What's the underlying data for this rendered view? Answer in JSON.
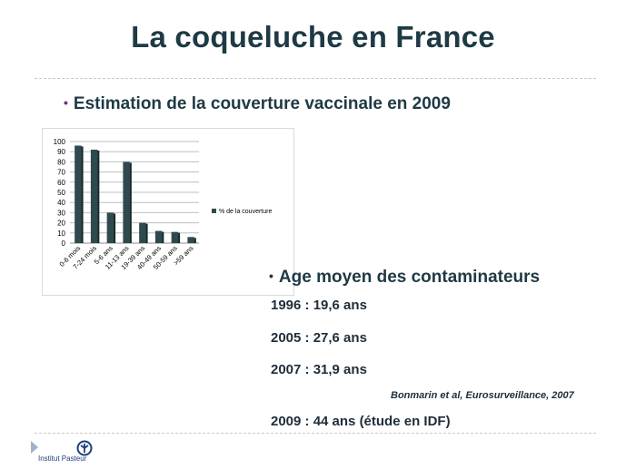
{
  "slide": {
    "title": "La coqueluche en France",
    "bullet1": "Estimation de la couverture vaccinale en 2009",
    "bullet2": "Age moyen des contaminateurs",
    "stats": [
      "1996 : 19,6 ans",
      "2005 : 27,6 ans",
      "2007 : 31,9 ans",
      "2009 : 44 ans (étude en IDF)"
    ],
    "reference_author": "Bonmarin et al",
    "reference_source": ", Eurosurveillance, 2007",
    "logo_text": "Institut Pasteur"
  },
  "colors": {
    "title": "#1e3a44",
    "bar": "#2f4a4e",
    "bar_side": "#1a2b2d",
    "bullet_dot": "#7a2a7c"
  },
  "chart_data": {
    "type": "bar",
    "categories": [
      "0-6 mois",
      "7-24 mois",
      "5-6 ans",
      "11-13 ans",
      "19-39 ans",
      "40-49 ans",
      "50-59 ans",
      ">59 ans"
    ],
    "series": [
      {
        "name": "% de la couverture",
        "values": [
          96,
          92,
          30,
          80,
          20,
          12,
          11,
          6
        ]
      }
    ],
    "yticks": [
      "0",
      "10",
      "20",
      "30",
      "40",
      "50",
      "60",
      "70",
      "80",
      "90",
      "100"
    ],
    "ylim": [
      0,
      100
    ],
    "grid": true,
    "legend_position": "right"
  }
}
